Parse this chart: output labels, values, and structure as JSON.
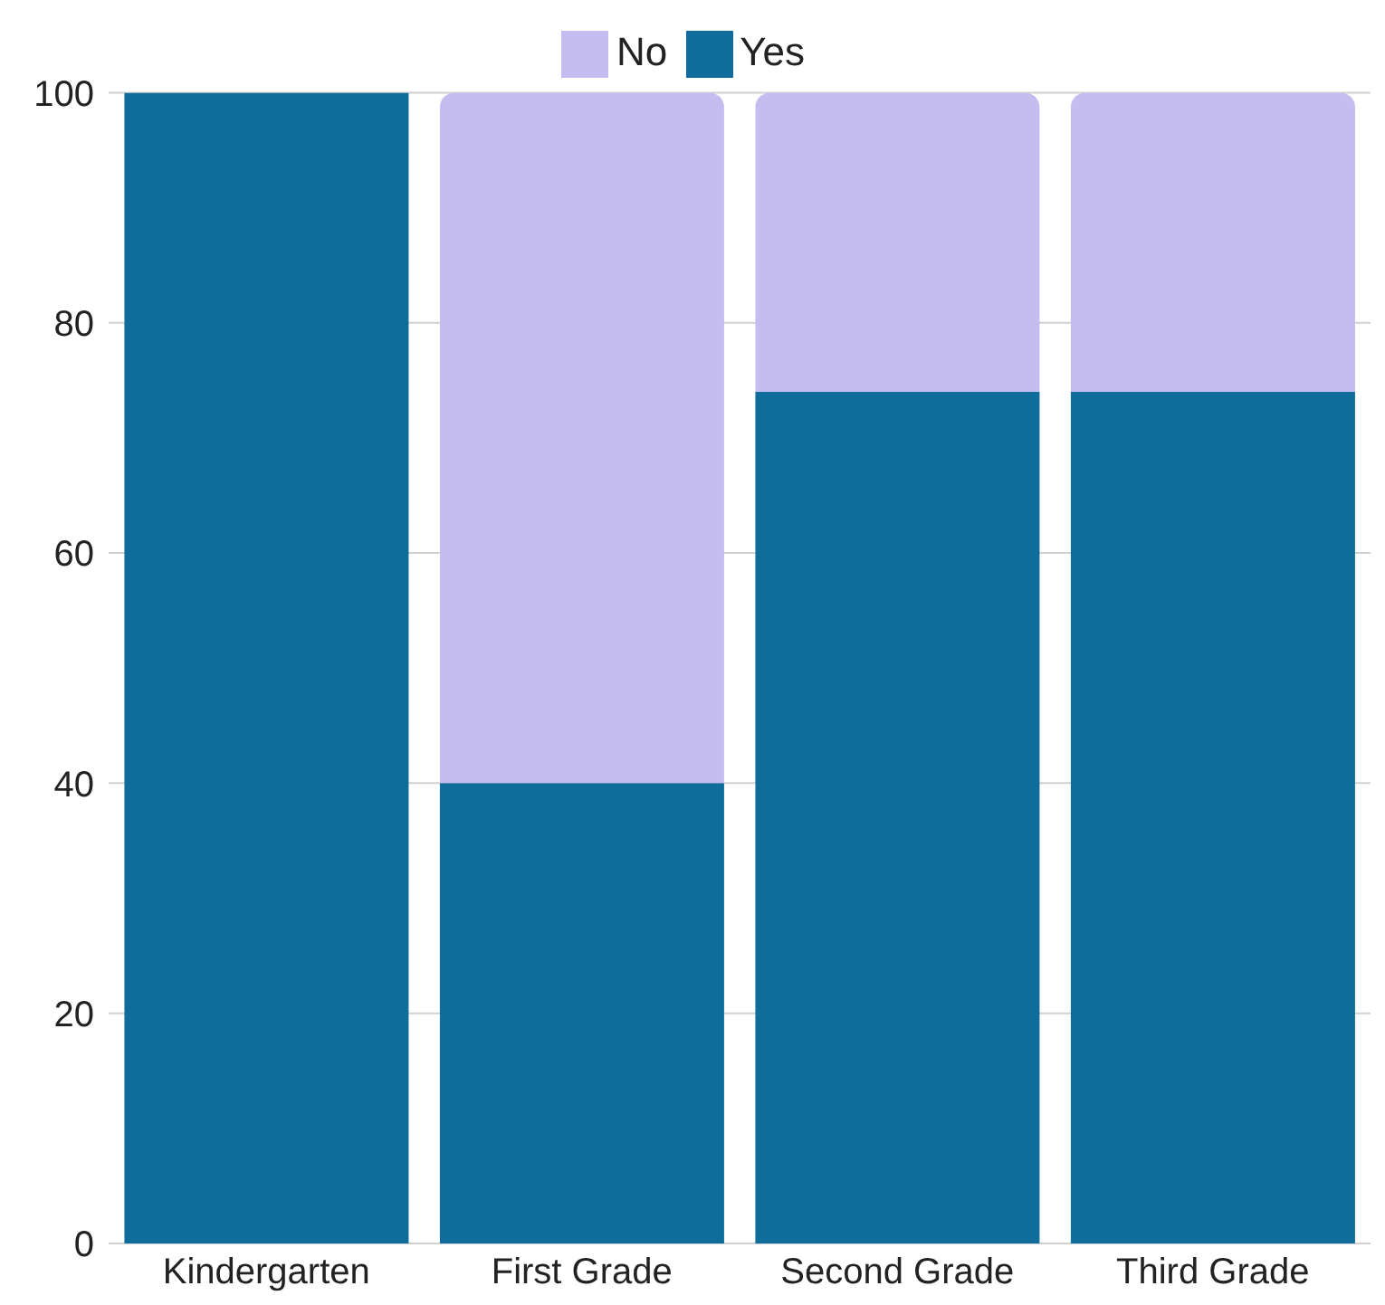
{
  "chart_data": {
    "type": "bar",
    "stacked": true,
    "categories": [
      "Kindergarten",
      "First Grade",
      "Second Grade",
      "Third Grade"
    ],
    "series": [
      {
        "name": "Yes",
        "color": "#0f6d9b",
        "values": [
          100,
          40,
          74,
          74
        ]
      },
      {
        "name": "No",
        "color": "#c5bcf0",
        "values": [
          0,
          60,
          26,
          26
        ]
      }
    ],
    "ylim": [
      0,
      100
    ],
    "yticks": [
      0,
      20,
      40,
      60,
      80,
      100
    ],
    "grid": "y",
    "legend": "top"
  }
}
